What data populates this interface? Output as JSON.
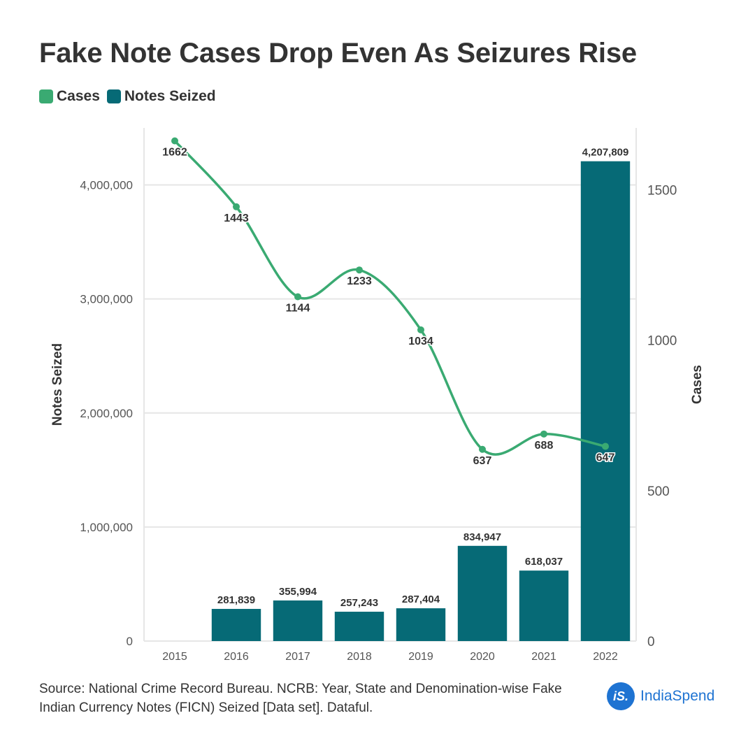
{
  "title": "Fake Note Cases Drop Even As Seizures Rise",
  "legend": [
    {
      "label": "Cases",
      "color": "#3aaa72"
    },
    {
      "label": "Notes Seized",
      "color": "#066a76"
    }
  ],
  "source": "Source: National Crime Record Bureau. NCRB: Year, State and Denomination-wise Fake Indian Currency Notes (FICN) Seized [Data set]. Dataful.",
  "brand": {
    "mark": "iS.",
    "name": "IndiaSpend",
    "color": "#1e73d2"
  },
  "chart_data": {
    "type": "bar+line",
    "title": "Fake Note Cases Drop Even As Seizures Rise",
    "categories": [
      "2015",
      "2016",
      "2017",
      "2018",
      "2019",
      "2020",
      "2021",
      "2022"
    ],
    "series": [
      {
        "name": "Notes Seized",
        "type": "bar",
        "axis": "left",
        "color": "#066a76",
        "values": [
          null,
          281839,
          355994,
          257243,
          287404,
          834947,
          618037,
          4207809
        ],
        "labels": [
          "",
          "281,839",
          "355,994",
          "257,243",
          "287,404",
          "834,947",
          "618,037",
          "4,207,809"
        ]
      },
      {
        "name": "Cases",
        "type": "line",
        "axis": "right",
        "color": "#3aaa72",
        "values": [
          1662,
          1443,
          1144,
          1233,
          1034,
          637,
          688,
          647
        ],
        "labels": [
          "1662",
          "1443",
          "1144",
          "1233",
          "1034",
          "637",
          "688",
          "647"
        ]
      }
    ],
    "y_left": {
      "label": "Notes Seized",
      "min": 0,
      "max": 4500000,
      "ticks": [
        0,
        1000000,
        2000000,
        3000000,
        4000000
      ],
      "tick_labels": [
        "0",
        "1,000,000",
        "2,000,000",
        "3,000,000",
        "4,000,000"
      ]
    },
    "y_right": {
      "label": "Cases",
      "min": 0,
      "max": 1705,
      "ticks": [
        0,
        500,
        1000,
        1500
      ],
      "tick_labels": [
        "0",
        "500",
        "1000",
        "1500"
      ]
    },
    "grid": true
  }
}
